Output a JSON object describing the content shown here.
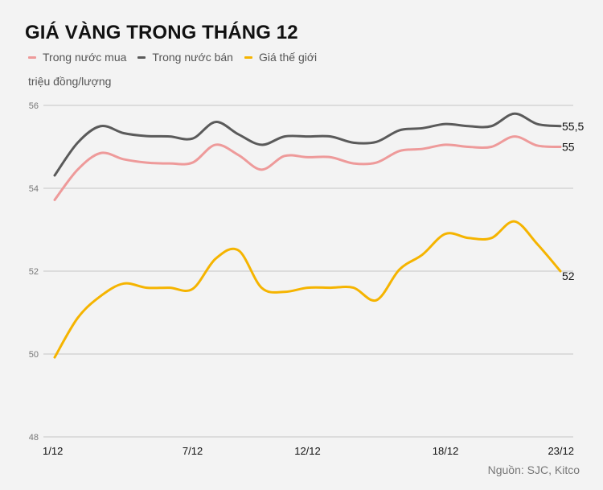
{
  "title": "GIÁ VÀNG TRONG THÁNG 12",
  "unit_label": "triệu đồng/lượng",
  "source": "Nguồn: SJC, Kitco",
  "legend": [
    {
      "label": "Trong nước mua",
      "color": "#ee9a9a"
    },
    {
      "label": "Trong nước bán",
      "color": "#5a5a5a"
    },
    {
      "label": "Giá thế giới",
      "color": "#f5b400"
    }
  ],
  "chart_data": {
    "type": "line",
    "title": "GIÁ VÀNG TRONG THÁNG 12",
    "xlabel": "",
    "ylabel": "triệu đồng/lượng",
    "ylim": [
      48,
      56
    ],
    "yticks": [
      48,
      50,
      52,
      54,
      56
    ],
    "grid": true,
    "legend_position": "top-left",
    "x": [
      "1/12",
      "2/12",
      "3/12",
      "4/12",
      "5/12",
      "6/12",
      "7/12",
      "8/12",
      "9/12",
      "10/12",
      "11/12",
      "12/12",
      "13/12",
      "14/12",
      "15/12",
      "16/12",
      "17/12",
      "18/12",
      "19/12",
      "20/12",
      "21/12",
      "22/12",
      "23/12"
    ],
    "xtick_labels": [
      "1/12",
      "7/12",
      "12/12",
      "18/12",
      "23/12"
    ],
    "xtick_indices": [
      0,
      6,
      11,
      17,
      22
    ],
    "series": [
      {
        "name": "Trong nước mua",
        "color": "#ee9a9a",
        "end_label": "55",
        "values": [
          53.72,
          54.45,
          54.85,
          54.7,
          54.62,
          54.6,
          54.62,
          55.05,
          54.8,
          54.45,
          54.78,
          54.75,
          54.75,
          54.6,
          54.62,
          54.9,
          54.95,
          55.05,
          55.0,
          55.0,
          55.25,
          55.03,
          55.0
        ]
      },
      {
        "name": "Trong nước bán",
        "color": "#5a5a5a",
        "end_label": "55,5",
        "values": [
          54.31,
          55.1,
          55.5,
          55.33,
          55.26,
          55.25,
          55.2,
          55.6,
          55.3,
          55.05,
          55.25,
          55.25,
          55.25,
          55.1,
          55.12,
          55.4,
          55.45,
          55.55,
          55.5,
          55.5,
          55.8,
          55.55,
          55.5
        ]
      },
      {
        "name": "Giá thế giới",
        "color": "#f5b400",
        "end_label": "52",
        "values": [
          49.92,
          50.87,
          51.4,
          51.7,
          51.6,
          51.6,
          51.57,
          52.3,
          52.5,
          51.6,
          51.5,
          51.6,
          51.6,
          51.6,
          51.3,
          52.04,
          52.4,
          52.9,
          52.8,
          52.8,
          53.2,
          52.65,
          52.0
        ]
      }
    ]
  }
}
